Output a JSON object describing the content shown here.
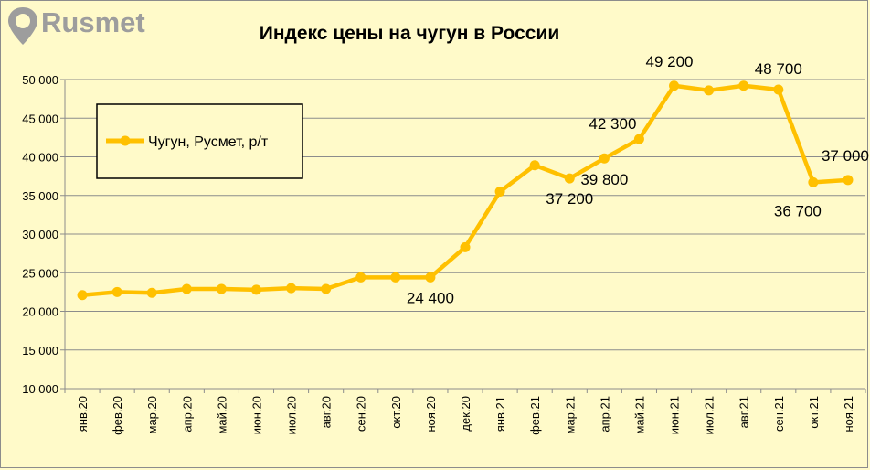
{
  "logo": {
    "text": "Rusmet"
  },
  "chart_data": {
    "type": "line",
    "title": "Индекс цены на чугун в России",
    "categories": [
      "янв.20",
      "фев.20",
      "мар.20",
      "апр.20",
      "май.20",
      "июн.20",
      "июл.20",
      "авг.20",
      "сен.20",
      "окт.20",
      "ноя.20",
      "дек.20",
      "янв.21",
      "фев.21",
      "мар.21",
      "апр.21",
      "май.21",
      "июн.21",
      "июл.21",
      "авг.21",
      "сен.21",
      "окт.21",
      "ноя.21"
    ],
    "series": [
      {
        "name": "Чугун, Русмет, р/т",
        "color": "#ffc000",
        "values": [
          22100,
          22500,
          22400,
          22900,
          22900,
          22800,
          23000,
          22900,
          24400,
          24400,
          24400,
          28300,
          35500,
          38900,
          37200,
          39800,
          42300,
          49200,
          48600,
          49200,
          48700,
          36700,
          37000
        ]
      }
    ],
    "data_labels": [
      {
        "index": 10,
        "text": "24 400",
        "position": "below"
      },
      {
        "index": 14,
        "text": "37 200",
        "position": "below"
      },
      {
        "index": 15,
        "text": "39 800",
        "position": "below-right"
      },
      {
        "index": 16,
        "text": "42 300",
        "position": "above-left"
      },
      {
        "index": 17,
        "text": "49 200",
        "position": "above-right"
      },
      {
        "index": 20,
        "text": "48 700",
        "position": "above"
      },
      {
        "index": 21,
        "text": "36 700",
        "position": "below-left"
      },
      {
        "index": 22,
        "text": "37 000",
        "position": "above-right"
      }
    ],
    "yticks": [
      "10 000",
      "15 000",
      "20 000",
      "25 000",
      "30 000",
      "35 000",
      "40 000",
      "45 000",
      "50 000"
    ],
    "ylim": [
      10000,
      50000
    ],
    "grid": true,
    "legend": "top-left"
  }
}
